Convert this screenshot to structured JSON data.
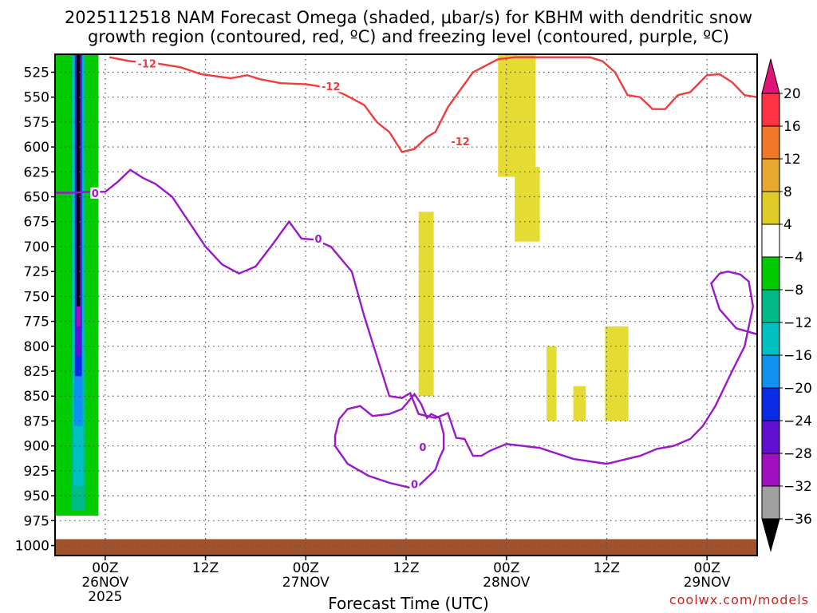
{
  "title_line1": "2025112518 NAM Forecast Omega (shaded, μbar/s) for KBHM with dendritic snow",
  "title_line2": "growth region (contoured, red, ºC) and freezing level (contoured, purple, ºC)",
  "credit": "coolwx.com/models",
  "chart_data": {
    "type": "heatmap",
    "title": "2025112518 NAM Forecast Omega (shaded, μbar/s) for KBHM with dendritic snow growth region (contoured, red, ºC) and freezing level (contoured, purple, ºC)",
    "xlabel": "Forecast Time (UTC)",
    "ylabel": "",
    "x_ticks": [
      {
        "hour": 6,
        "lines": [
          "00Z",
          "26NOV",
          "2025"
        ]
      },
      {
        "hour": 18,
        "lines": [
          "12Z"
        ]
      },
      {
        "hour": 30,
        "lines": [
          "00Z",
          "27NOV"
        ]
      },
      {
        "hour": 42,
        "lines": [
          "12Z"
        ]
      },
      {
        "hour": 54,
        "lines": [
          "00Z",
          "28NOV"
        ]
      },
      {
        "hour": 66,
        "lines": [
          "12Z"
        ]
      },
      {
        "hour": 78,
        "lines": [
          "00Z",
          "29NOV"
        ]
      }
    ],
    "xlim": [
      0,
      84
    ],
    "y_ticks": [
      525,
      550,
      575,
      600,
      625,
      650,
      675,
      700,
      725,
      750,
      775,
      800,
      825,
      850,
      875,
      900,
      925,
      950,
      975,
      1000
    ],
    "ylim_hPa": [
      1010,
      507
    ],
    "grid": true,
    "colorbar": {
      "labels": [
        "20",
        "16",
        "12",
        "8",
        "4",
        "−4",
        "−8",
        "−12",
        "−16",
        "−20",
        "−24",
        "−28",
        "−32",
        "−36"
      ],
      "colors": [
        "#ff3344",
        "#f07828",
        "#e8a830",
        "#e0cc28",
        "#ffffff",
        "#00cc00",
        "#00bb88",
        "#00c0c0",
        "#1090f0",
        "#0a2ae6",
        "#6010d0",
        "#a010c0",
        "#a0a0a0"
      ],
      "top_arrow_color": "#e01478",
      "bottom_arrow_color": "#000000"
    },
    "surface_color": "#a0522d",
    "omega_regions": [
      {
        "value_range": "4 to 8",
        "color": "#e5dc33",
        "hours": [
          53,
          57.5
        ],
        "hPa": [
          507,
          630
        ]
      },
      {
        "value_range": "4 to 8",
        "color": "#e5dc33",
        "hours": [
          55,
          58
        ],
        "hPa": [
          620,
          695
        ]
      },
      {
        "value_range": "4 to 8",
        "color": "#e5dc33",
        "hours": [
          43.5,
          45.3
        ],
        "hPa": [
          665,
          850
        ]
      },
      {
        "value_range": "4 to 8",
        "color": "#e5dc33",
        "hours": [
          58.8,
          60
        ],
        "hPa": [
          800,
          875
        ]
      },
      {
        "value_range": "4 to 8",
        "color": "#e5dc33",
        "hours": [
          62,
          63.5
        ],
        "hPa": [
          840,
          875
        ]
      },
      {
        "value_range": "4 to 8",
        "color": "#e5dc33",
        "hours": [
          65.8,
          68.6
        ],
        "hPa": [
          780,
          875
        ]
      },
      {
        "value_range": "-4 to -36",
        "color": "#00cc00",
        "hours": [
          0,
          5.2
        ],
        "hPa": [
          507,
          970
        ]
      }
    ],
    "contour_labels": {
      "dgz": [
        "-12",
        "-12",
        "-12"
      ],
      "freezing": [
        "0",
        "0",
        "0",
        "0"
      ]
    },
    "dgz_minus12_contour": {
      "hours": [
        6.5,
        9,
        12,
        15,
        17.5,
        21,
        23,
        24.5,
        27,
        30,
        33,
        35,
        37,
        38.5,
        40,
        41.5,
        43,
        44.5,
        45.5,
        47,
        50,
        53,
        55,
        56.5,
        58,
        60,
        62,
        64,
        65.5,
        67,
        68.5,
        70,
        71.5,
        73,
        74.5,
        76,
        78,
        79.5,
        81,
        82.5,
        84
      ],
      "hPa": [
        510,
        514,
        516,
        520,
        527,
        531,
        528,
        532,
        536,
        537,
        541,
        549,
        558,
        575,
        585,
        605,
        602,
        590,
        585,
        560,
        525,
        512,
        510,
        510,
        510,
        510,
        510,
        510,
        514,
        525,
        548,
        550,
        562,
        562,
        548,
        545,
        528,
        527,
        535,
        548,
        550
      ]
    },
    "freezing_0C_contour_main": {
      "hours": [
        0,
        2,
        4,
        6,
        7.5,
        9,
        10.5,
        12,
        14,
        16,
        18,
        20,
        22,
        24,
        26,
        28,
        29.5,
        31,
        33,
        35.5,
        37,
        38.5,
        40,
        41.5,
        42.5,
        43.5,
        45.5,
        47,
        48,
        49,
        50,
        51,
        52,
        54,
        58,
        62,
        66,
        70,
        72,
        74,
        76,
        77.5,
        79,
        81,
        82.5,
        83.5,
        83,
        82,
        80.5,
        79.5,
        78.5,
        79.5,
        81.5,
        84
      ],
      "hPa": [
        646,
        646,
        645,
        645,
        635,
        623,
        631,
        637,
        650,
        675,
        700,
        718,
        727,
        720,
        698,
        675,
        692,
        693,
        700,
        725,
        770,
        810,
        850,
        852,
        847,
        868,
        872,
        867,
        892,
        893,
        910,
        910,
        905,
        898,
        902,
        913,
        918,
        910,
        903,
        900,
        893,
        880,
        860,
        825,
        800,
        760,
        735,
        728,
        725,
        727,
        737,
        763,
        782,
        788
      ]
    },
    "freezing_0C_contour_loop": {
      "hours": [
        43,
        41.5,
        40,
        38,
        36.5,
        35,
        34,
        33.5,
        33.5,
        35,
        37.5,
        40,
        42.5,
        43.5,
        44.5,
        45.5,
        46,
        46.5,
        46.5,
        46,
        45,
        44.5,
        43.8,
        43
      ],
      "hPa": [
        848,
        863,
        868,
        870,
        860,
        863,
        873,
        890,
        900,
        918,
        930,
        937,
        942,
        940,
        932,
        924,
        912,
        903,
        888,
        872,
        868,
        872,
        858,
        848
      ]
    }
  }
}
